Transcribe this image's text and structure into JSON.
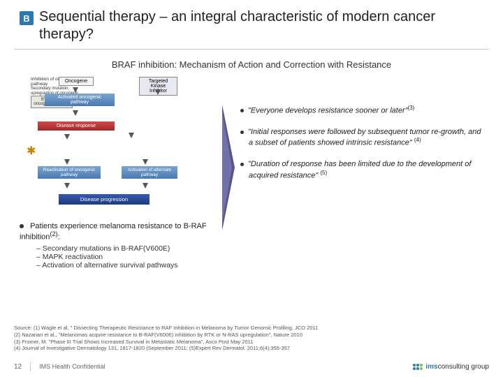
{
  "badge": "B",
  "title": "Sequential therapy – an integral characteristic of modern cancer therapy?",
  "subtitle": "BRAF inhibition: Mechanism of Action and Correction with Resistance",
  "diagram": {
    "oncogene": "Oncogene",
    "tki": "Targeted Kinase Inhibitor",
    "activated": "Activated oncogenic pathway",
    "inhibition": "Inhibition of oncogenic pathway",
    "response": "Disease response",
    "secondary": "Secondary mutation; upregulation of oncogene",
    "bypass": "BYPASS of oncogenic pathway",
    "reactivation": "Reactivation of oncogenic pathway",
    "alternate": "Activation of alternate pathway",
    "progression": "Disease progression"
  },
  "left_note": "Patients experience melanoma resistance to B-RAF inhibition",
  "left_note_sup": "(2)",
  "left_sub": [
    "Secondary mutations in B-RAF(V600E)",
    "MAPK reactivation",
    "Activation of alternative survival pathways"
  ],
  "quotes": [
    {
      "text": "\"Everyone develops resistance sooner or later\"",
      "ref": "(3)"
    },
    {
      "text": "\"Initial responses were followed by subsequent tumor re-growth, and a subset of patients showed intrinsic resistance\"",
      "ref": "(4)"
    },
    {
      "text": "\"Duration of response has been limited due to the development of acquired resistance\"",
      "ref": "(5)"
    }
  ],
  "sources": [
    "Source: (1) Wagle et al, \" Dissecting Therapeutic Resistance to RAF Inhibition in Melanoma by Tumor Genomic Profiling, JCO 2011",
    "(2) Nazarian et al., \"Melanomas acquire resistance to B-RAF(V600E) inhibition by RTK or N-RAS upregulation\", Nature 2010",
    "(3) Fromer, M. \"Phase III Trial Shows Increased Survival in Metastatic Melanoma\", Asco Post May 2011",
    "(4) Journal of Investigative Dermatology 131, 1817-1820 (September 2011; (5)Expert Rev Dermatol. 2011;6(4):355-357"
  ],
  "page_number": "12",
  "confidential": "IMS Health Confidential",
  "logo_text_1": "ims",
  "logo_text_2": "consulting group"
}
